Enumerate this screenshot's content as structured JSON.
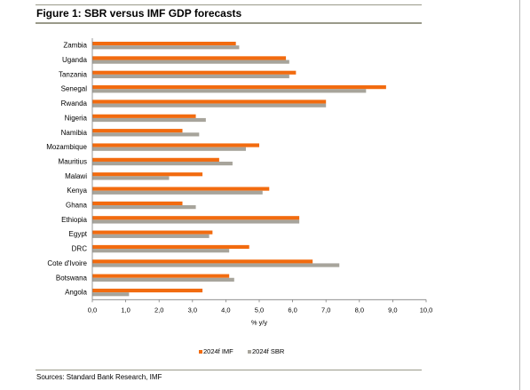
{
  "figure": {
    "title": "Figure 1:  SBR versus IMF GDP forecasts",
    "source": "Sources: Standard Bank Research, IMF"
  },
  "colors": {
    "imf": "#f26b0f",
    "sbr": "#a7a49b",
    "rule": "#9a9a8a"
  },
  "chart_data": {
    "type": "bar",
    "orientation": "horizontal",
    "categories": [
      "Zambia",
      "Uganda",
      "Tanzania",
      "Senegal",
      "Rwanda",
      "Nigeria",
      "Namibia",
      "Mozambique",
      "Mauritius",
      "Malawi",
      "Kenya",
      "Ghana",
      "Ethiopia",
      "Egypt",
      "DRC",
      "Cote d'Ivoire",
      "Botswana",
      "Angola"
    ],
    "series": [
      {
        "name": "2024f IMF",
        "color": "#f26b0f",
        "values": [
          4.3,
          5.8,
          6.1,
          8.8,
          7.0,
          3.1,
          2.7,
          5.0,
          3.8,
          3.3,
          5.3,
          2.7,
          6.2,
          3.6,
          4.7,
          6.6,
          4.1,
          3.3
        ]
      },
      {
        "name": "2024f SBR",
        "color": "#a7a49b",
        "values": [
          4.4,
          5.9,
          5.9,
          8.2,
          7.0,
          3.4,
          3.2,
          4.6,
          4.2,
          2.3,
          5.1,
          3.1,
          6.2,
          3.5,
          4.1,
          7.4,
          4.25,
          1.1
        ]
      }
    ],
    "xlabel": "% y/y",
    "xlim": [
      0,
      10
    ],
    "xticks": [
      "0,0",
      "1,0",
      "2,0",
      "3,0",
      "4,0",
      "5,0",
      "6,0",
      "7,0",
      "8,0",
      "9,0",
      "10,0"
    ],
    "grid": false,
    "legend": "bottom-center"
  }
}
